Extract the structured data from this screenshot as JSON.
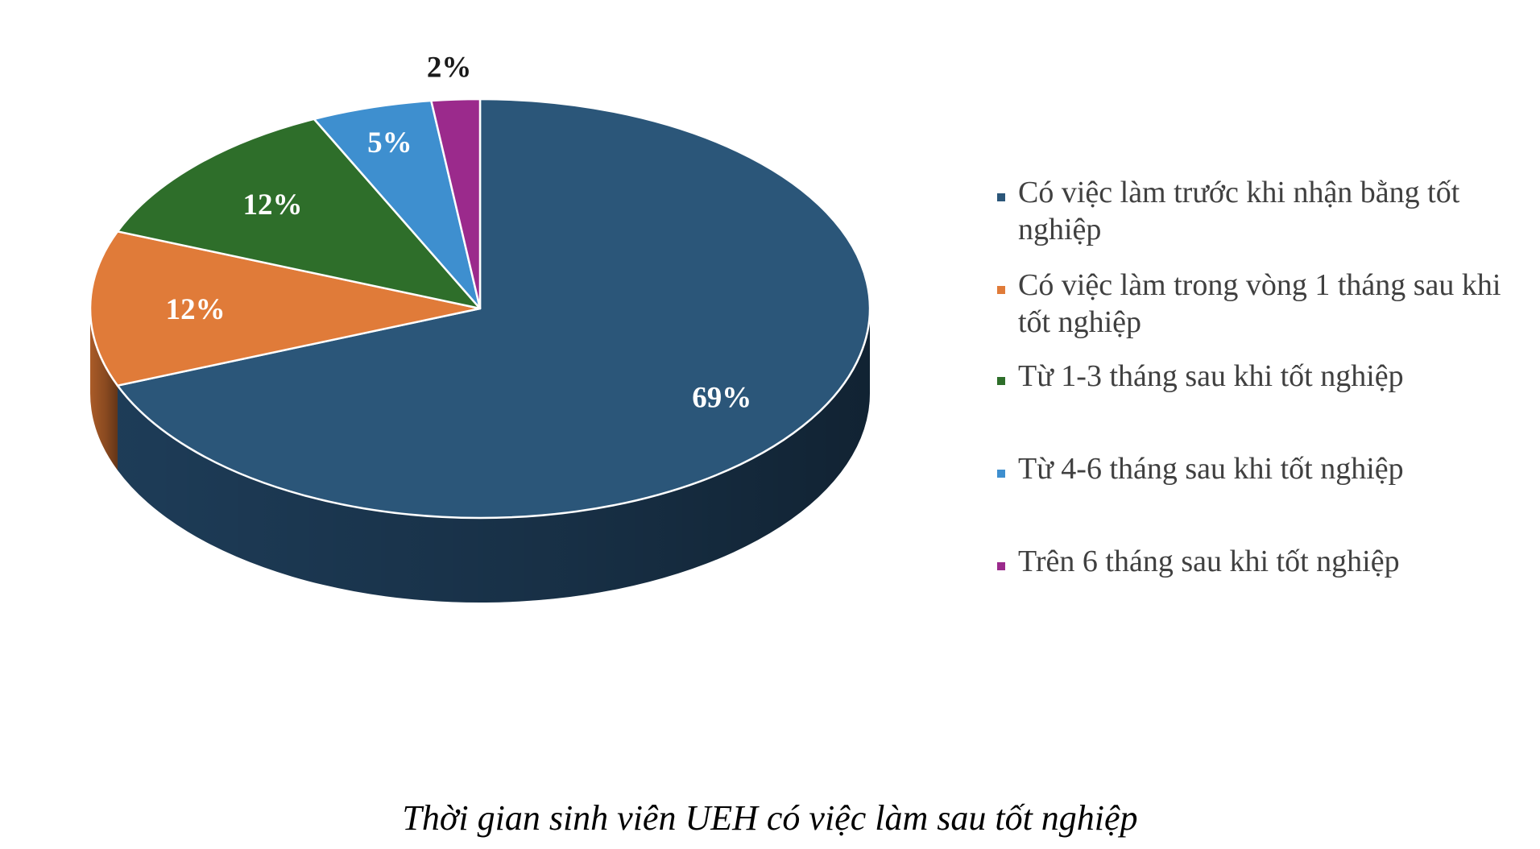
{
  "chart_data": {
    "type": "pie",
    "style": "3d",
    "title": "",
    "slices": [
      {
        "label": "Có việc làm trước khi nhận bằng tốt nghiệp",
        "value": 69,
        "display": "69%",
        "color": "#2b5679",
        "side_color": "#1f3f5c"
      },
      {
        "label": "Có việc làm trong vòng 1 tháng sau khi tốt nghiệp",
        "value": 12,
        "display": "12%",
        "color": "#e07b39",
        "side_color": "#b3602a"
      },
      {
        "label": "Từ 1-3 tháng sau khi tốt nghiệp",
        "value": 12,
        "display": "12%",
        "color": "#2e6e2a",
        "side_color": "#23521f"
      },
      {
        "label": "Từ 4-6 tháng sau khi tốt nghiệp",
        "value": 5,
        "display": "5%",
        "color": "#3e8fcf",
        "side_color": "#2f6fa3"
      },
      {
        "label": "Trên 6 tháng sau khi tốt nghiệp",
        "value": 2,
        "display": "2%",
        "color": "#9b2a8c",
        "side_color": "#7a1f6e"
      }
    ],
    "legend_position": "right"
  },
  "caption": "Thời gian sinh viên UEH có việc làm sau tốt nghiệp"
}
